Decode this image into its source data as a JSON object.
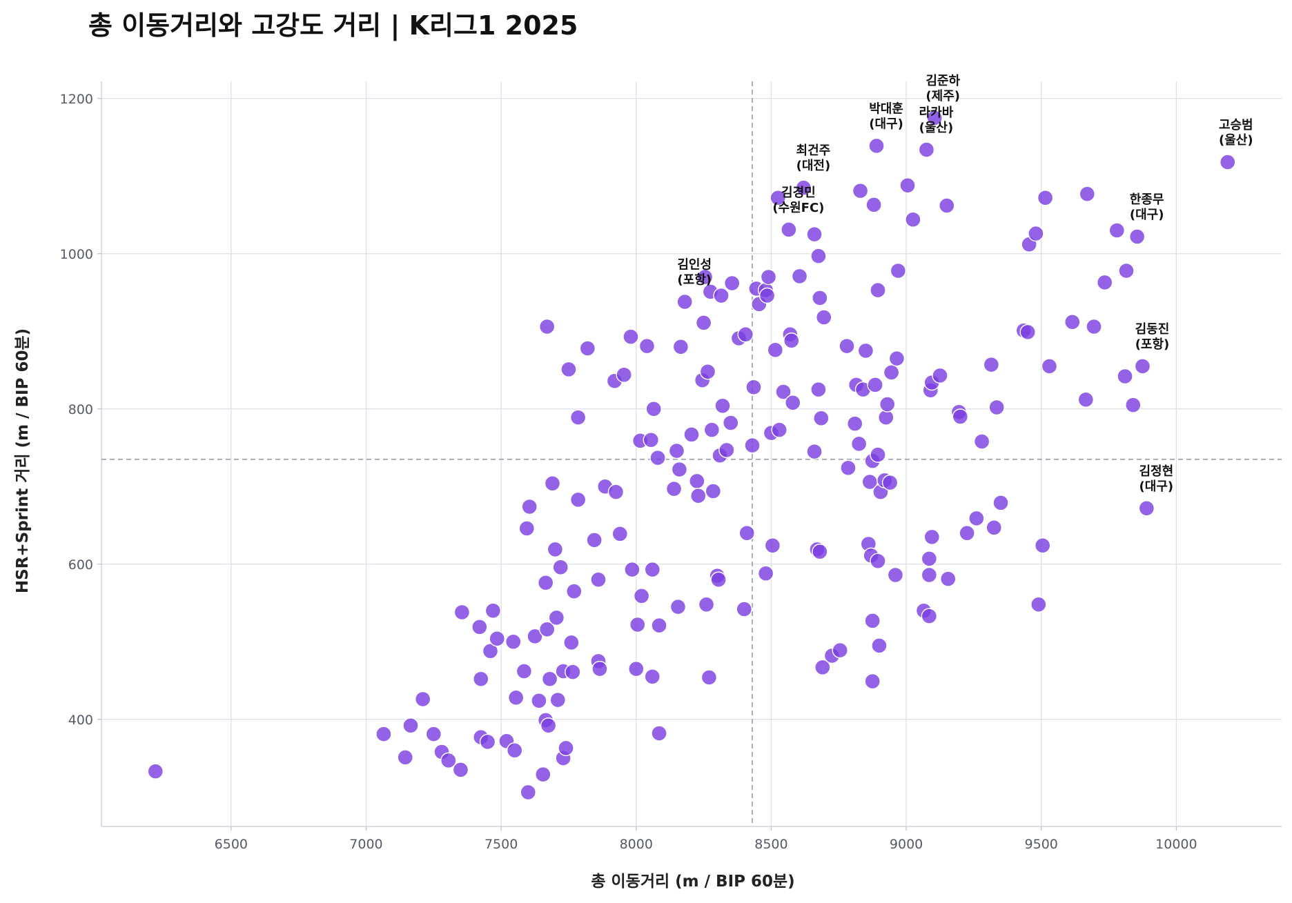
{
  "chart_data": {
    "type": "scatter",
    "title": "총 이동거리와 고강도 거리 | K리그1 2025",
    "xlabel": "총 이동거리 (m / BIP 60분)",
    "ylabel": "HSR+Sprint 거리 (m / BIP 60분)",
    "xlim": [
      6020,
      10390
    ],
    "ylim": [
      262,
      1222
    ],
    "xticks": [
      6500,
      7000,
      7500,
      8000,
      8500,
      9000,
      9500,
      10000
    ],
    "yticks": [
      400,
      600,
      800,
      1000,
      1200
    ],
    "grid": true,
    "mean_lines": {
      "x": 8430,
      "y": 735
    },
    "colors": {
      "point": "#7b3fe0",
      "grid": "#dcdfe7",
      "mean_line": "#a8adb8"
    },
    "points": [
      [
        6220,
        333
      ],
      [
        7065,
        381
      ],
      [
        7145,
        351
      ],
      [
        7165,
        392
      ],
      [
        7210,
        426
      ],
      [
        7250,
        381
      ],
      [
        7280,
        358
      ],
      [
        7305,
        347
      ],
      [
        7350,
        335
      ],
      [
        7355,
        538
      ],
      [
        7420,
        519
      ],
      [
        7425,
        452
      ],
      [
        7425,
        377
      ],
      [
        7450,
        371
      ],
      [
        7460,
        488
      ],
      [
        7470,
        540
      ],
      [
        7485,
        504
      ],
      [
        7520,
        372
      ],
      [
        7545,
        500
      ],
      [
        7550,
        360
      ],
      [
        7555,
        428
      ],
      [
        7585,
        462
      ],
      [
        7595,
        646
      ],
      [
        7605,
        674
      ],
      [
        7600,
        306
      ],
      [
        7625,
        507
      ],
      [
        7640,
        424
      ],
      [
        7655,
        329
      ],
      [
        7665,
        399
      ],
      [
        7665,
        576
      ],
      [
        7670,
        516
      ],
      [
        7675,
        392
      ],
      [
        7680,
        452
      ],
      [
        7690,
        704
      ],
      [
        7700,
        619
      ],
      [
        7705,
        531
      ],
      [
        7710,
        425
      ],
      [
        7720,
        596
      ],
      [
        7730,
        462
      ],
      [
        7730,
        350
      ],
      [
        7740,
        363
      ],
      [
        7760,
        499
      ],
      [
        7765,
        461
      ],
      [
        7770,
        565
      ],
      [
        7785,
        683
      ],
      [
        7785,
        789
      ],
      [
        7670,
        906
      ],
      [
        7750,
        851
      ],
      [
        7820,
        878
      ],
      [
        7845,
        631
      ],
      [
        7860,
        580
      ],
      [
        7860,
        475
      ],
      [
        7865,
        465
      ],
      [
        7885,
        700
      ],
      [
        7920,
        836
      ],
      [
        7925,
        693
      ],
      [
        7940,
        639
      ],
      [
        7955,
        844
      ],
      [
        7980,
        893
      ],
      [
        7985,
        593
      ],
      [
        8000,
        465
      ],
      [
        8005,
        522
      ],
      [
        8015,
        759
      ],
      [
        8020,
        559
      ],
      [
        8040,
        881
      ],
      [
        8055,
        760
      ],
      [
        8060,
        593
      ],
      [
        8060,
        455
      ],
      [
        8065,
        800
      ],
      [
        8080,
        737
      ],
      [
        8085,
        521
      ],
      [
        8085,
        382
      ],
      [
        8140,
        697
      ],
      [
        8150,
        746
      ],
      [
        8155,
        545
      ],
      [
        8160,
        722
      ],
      [
        8165,
        880
      ],
      [
        8180,
        938
      ],
      [
        8205,
        767
      ],
      [
        8225,
        707
      ],
      [
        8230,
        688
      ],
      [
        8245,
        837
      ],
      [
        8250,
        911
      ],
      [
        8255,
        970
      ],
      [
        8260,
        548
      ],
      [
        8265,
        848
      ],
      [
        8270,
        454
      ],
      [
        8275,
        951
      ],
      [
        8280,
        773
      ],
      [
        8285,
        694
      ],
      [
        8300,
        585
      ],
      [
        8305,
        580
      ],
      [
        8310,
        740
      ],
      [
        8315,
        946
      ],
      [
        8320,
        804
      ],
      [
        8335,
        747
      ],
      [
        8350,
        782
      ],
      [
        8355,
        962
      ],
      [
        8380,
        891
      ],
      [
        8400,
        542
      ],
      [
        8405,
        896
      ],
      [
        8410,
        640
      ],
      [
        8430,
        753
      ],
      [
        8435,
        828
      ],
      [
        8445,
        955
      ],
      [
        8455,
        935
      ],
      [
        8480,
        953
      ],
      [
        8480,
        588
      ],
      [
        8485,
        946
      ],
      [
        8490,
        970
      ],
      [
        8500,
        769
      ],
      [
        8505,
        624
      ],
      [
        8515,
        876
      ],
      [
        8525,
        1072
      ],
      [
        8530,
        773
      ],
      [
        8545,
        822
      ],
      [
        8565,
        1031
      ],
      [
        8570,
        896
      ],
      [
        8575,
        888
      ],
      [
        8580,
        808
      ],
      [
        8605,
        971
      ],
      [
        8620,
        1085
      ],
      [
        8660,
        1025
      ],
      [
        8660,
        745
      ],
      [
        8670,
        619
      ],
      [
        8675,
        997
      ],
      [
        8675,
        825
      ],
      [
        8680,
        943
      ],
      [
        8680,
        616
      ],
      [
        8685,
        788
      ],
      [
        8690,
        467
      ],
      [
        8695,
        918
      ],
      [
        8725,
        482
      ],
      [
        8755,
        489
      ],
      [
        8780,
        881
      ],
      [
        8785,
        724
      ],
      [
        8810,
        781
      ],
      [
        8815,
        831
      ],
      [
        8825,
        755
      ],
      [
        8830,
        1081
      ],
      [
        8840,
        825
      ],
      [
        8850,
        875
      ],
      [
        8860,
        626
      ],
      [
        8865,
        706
      ],
      [
        8870,
        611
      ],
      [
        8875,
        733
      ],
      [
        8875,
        527
      ],
      [
        8875,
        449
      ],
      [
        8880,
        1063
      ],
      [
        8885,
        831
      ],
      [
        8890,
        1139
      ],
      [
        8895,
        741
      ],
      [
        8895,
        953
      ],
      [
        8895,
        604
      ],
      [
        8900,
        495
      ],
      [
        8905,
        693
      ],
      [
        8920,
        708
      ],
      [
        8925,
        789
      ],
      [
        8930,
        806
      ],
      [
        8940,
        705
      ],
      [
        8945,
        847
      ],
      [
        8960,
        586
      ],
      [
        8965,
        865
      ],
      [
        8970,
        978
      ],
      [
        9005,
        1088
      ],
      [
        9025,
        1044
      ],
      [
        9065,
        540
      ],
      [
        9075,
        1134
      ],
      [
        9085,
        586
      ],
      [
        9085,
        607
      ],
      [
        9085,
        533
      ],
      [
        9090,
        824
      ],
      [
        9095,
        834
      ],
      [
        9095,
        635
      ],
      [
        9105,
        1175
      ],
      [
        9125,
        843
      ],
      [
        9150,
        1062
      ],
      [
        9155,
        581
      ],
      [
        9195,
        796
      ],
      [
        9200,
        790
      ],
      [
        9225,
        640
      ],
      [
        9260,
        659
      ],
      [
        9280,
        758
      ],
      [
        9315,
        857
      ],
      [
        9325,
        647
      ],
      [
        9335,
        802
      ],
      [
        9350,
        679
      ],
      [
        9435,
        901
      ],
      [
        9450,
        899
      ],
      [
        9455,
        1012
      ],
      [
        9480,
        1026
      ],
      [
        9490,
        548
      ],
      [
        9505,
        624
      ],
      [
        9515,
        1072
      ],
      [
        9530,
        855
      ],
      [
        9615,
        912
      ],
      [
        9665,
        812
      ],
      [
        9670,
        1077
      ],
      [
        9695,
        906
      ],
      [
        9735,
        963
      ],
      [
        9780,
        1030
      ],
      [
        9810,
        842
      ],
      [
        9815,
        978
      ],
      [
        9840,
        805
      ],
      [
        9855,
        1022
      ],
      [
        9875,
        855
      ],
      [
        9890,
        672
      ],
      [
        10190,
        1118
      ]
    ],
    "annotations": [
      {
        "lines": [
          "고승범",
          "(울산)"
        ],
        "x": 10185,
        "y": 1118
      },
      {
        "lines": [
          "김준하",
          "(제주)"
        ],
        "x": 9100,
        "y": 1175
      },
      {
        "lines": [
          "라카바",
          "(울산)"
        ],
        "x": 9075,
        "y": 1134
      },
      {
        "lines": [
          "박대훈",
          "(대구)"
        ],
        "x": 8890,
        "y": 1139
      },
      {
        "lines": [
          "최건주",
          "(대전)"
        ],
        "x": 8620,
        "y": 1085
      },
      {
        "lines": [
          "김경민",
          "(수원FC)"
        ],
        "x": 8565,
        "y": 1031
      },
      {
        "lines": [
          "한종무",
          "(대구)"
        ],
        "x": 9855,
        "y": 1022
      },
      {
        "lines": [
          "김인성",
          "(포항)"
        ],
        "x": 8180,
        "y": 938
      },
      {
        "lines": [
          "김동진",
          "(포항)"
        ],
        "x": 9875,
        "y": 855
      },
      {
        "lines": [
          "김정현",
          "(대구)"
        ],
        "x": 9890,
        "y": 672
      }
    ]
  }
}
